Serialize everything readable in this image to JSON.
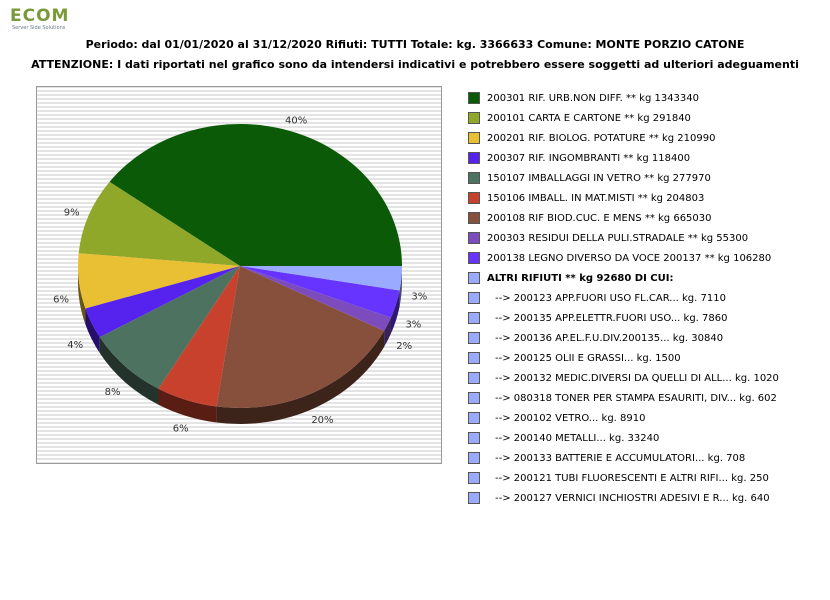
{
  "logo": {
    "text": "ECOM",
    "tagline": "Server Side Solutions"
  },
  "header": {
    "title": "Periodo: dal 01/01/2020 al 31/12/2020 Rifiuti: TUTTI    Totale: kg. 3366633    Comune: MONTE PORZIO CATONE",
    "subtitle": "ATTENZIONE: I dati riportati nel grafico sono da intendersi indicativi e potrebbero essere soggetti ad ulteriori adeguamenti"
  },
  "chart_data": {
    "type": "pie",
    "title": "",
    "slices": [
      {
        "label": "200301 RIF. URB.NON DIFF. ** kg 1343340",
        "value": 1343340,
        "percent_label": "40%",
        "color": "#0b5a08"
      },
      {
        "label": "200101 CARTA E CARTONE ** kg 291840",
        "value": 291840,
        "percent_label": "9%",
        "color": "#8fa82a"
      },
      {
        "label": "200201 RIF. BIOLOG. POTATURE ** kg 210990",
        "value": 210990,
        "percent_label": "6%",
        "color": "#e9bf33"
      },
      {
        "label": "200307 RIF. INGOMBRANTI ** kg 118400",
        "value": 118400,
        "percent_label": "4%",
        "color": "#5522ee"
      },
      {
        "label": "150107 IMBALLAGGI IN VETRO ** kg 277970",
        "value": 277970,
        "percent_label": "8%",
        "color": "#4e7260"
      },
      {
        "label": "150106 IMBALL. IN MAT.MISTI ** kg 204803",
        "value": 204803,
        "percent_label": "6%",
        "color": "#c8412c"
      },
      {
        "label": "200108 RIF BIOD.CUC. E MENS ** kg 665030",
        "value": 665030,
        "percent_label": "20%",
        "color": "#87503c"
      },
      {
        "label": "200303 RESIDUI DELLA PULI.STRADALE ** kg 55300",
        "value": 55300,
        "percent_label": "2%",
        "color": "#7c4cbf"
      },
      {
        "label": "200138 LEGNO DIVERSO DA VOCE 200137 ** kg 106280",
        "value": 106280,
        "percent_label": "3%",
        "color": "#6633ff"
      },
      {
        "label": "ALTRI RIFIUTI ** kg 92680 DI CUI:",
        "value": 92680,
        "percent_label": "3%",
        "color": "#99aaff"
      }
    ],
    "other_breakdown": [
      {
        "label": "-->  200123 APP.FUORI USO FL.CAR... kg. 7110",
        "value": 7110
      },
      {
        "label": "-->  200135 APP.ELETTR.FUORI USO... kg. 7860",
        "value": 7860
      },
      {
        "label": "-->  200136 AP.EL.F.U.DIV.200135... kg. 30840",
        "value": 30840
      },
      {
        "label": "-->  200125 OLII E GRASSI... kg. 1500",
        "value": 1500
      },
      {
        "label": "-->  200132 MEDIC.DIVERSI DA QUELLI DI ALL... kg. 1020",
        "value": 1020
      },
      {
        "label": "-->  080318 TONER PER STAMPA ESAURITI, DIV... kg. 602",
        "value": 602
      },
      {
        "label": "-->  200102 VETRO... kg. 8910",
        "value": 8910
      },
      {
        "label": "-->  200140 METALLI... kg. 33240",
        "value": 33240
      },
      {
        "label": "-->  200133 BATTERIE E ACCUMULATORI... kg. 708",
        "value": 708
      },
      {
        "label": "-->  200121 TUBI FLUORESCENTI E ALTRI RIFI... kg. 250",
        "value": 250
      },
      {
        "label": "-->  200127 VERNICI INCHIOSTRI ADESIVI E R... kg. 640",
        "value": 640
      }
    ],
    "other_color": "#99aaff",
    "legend_position": "right",
    "grid": false
  }
}
